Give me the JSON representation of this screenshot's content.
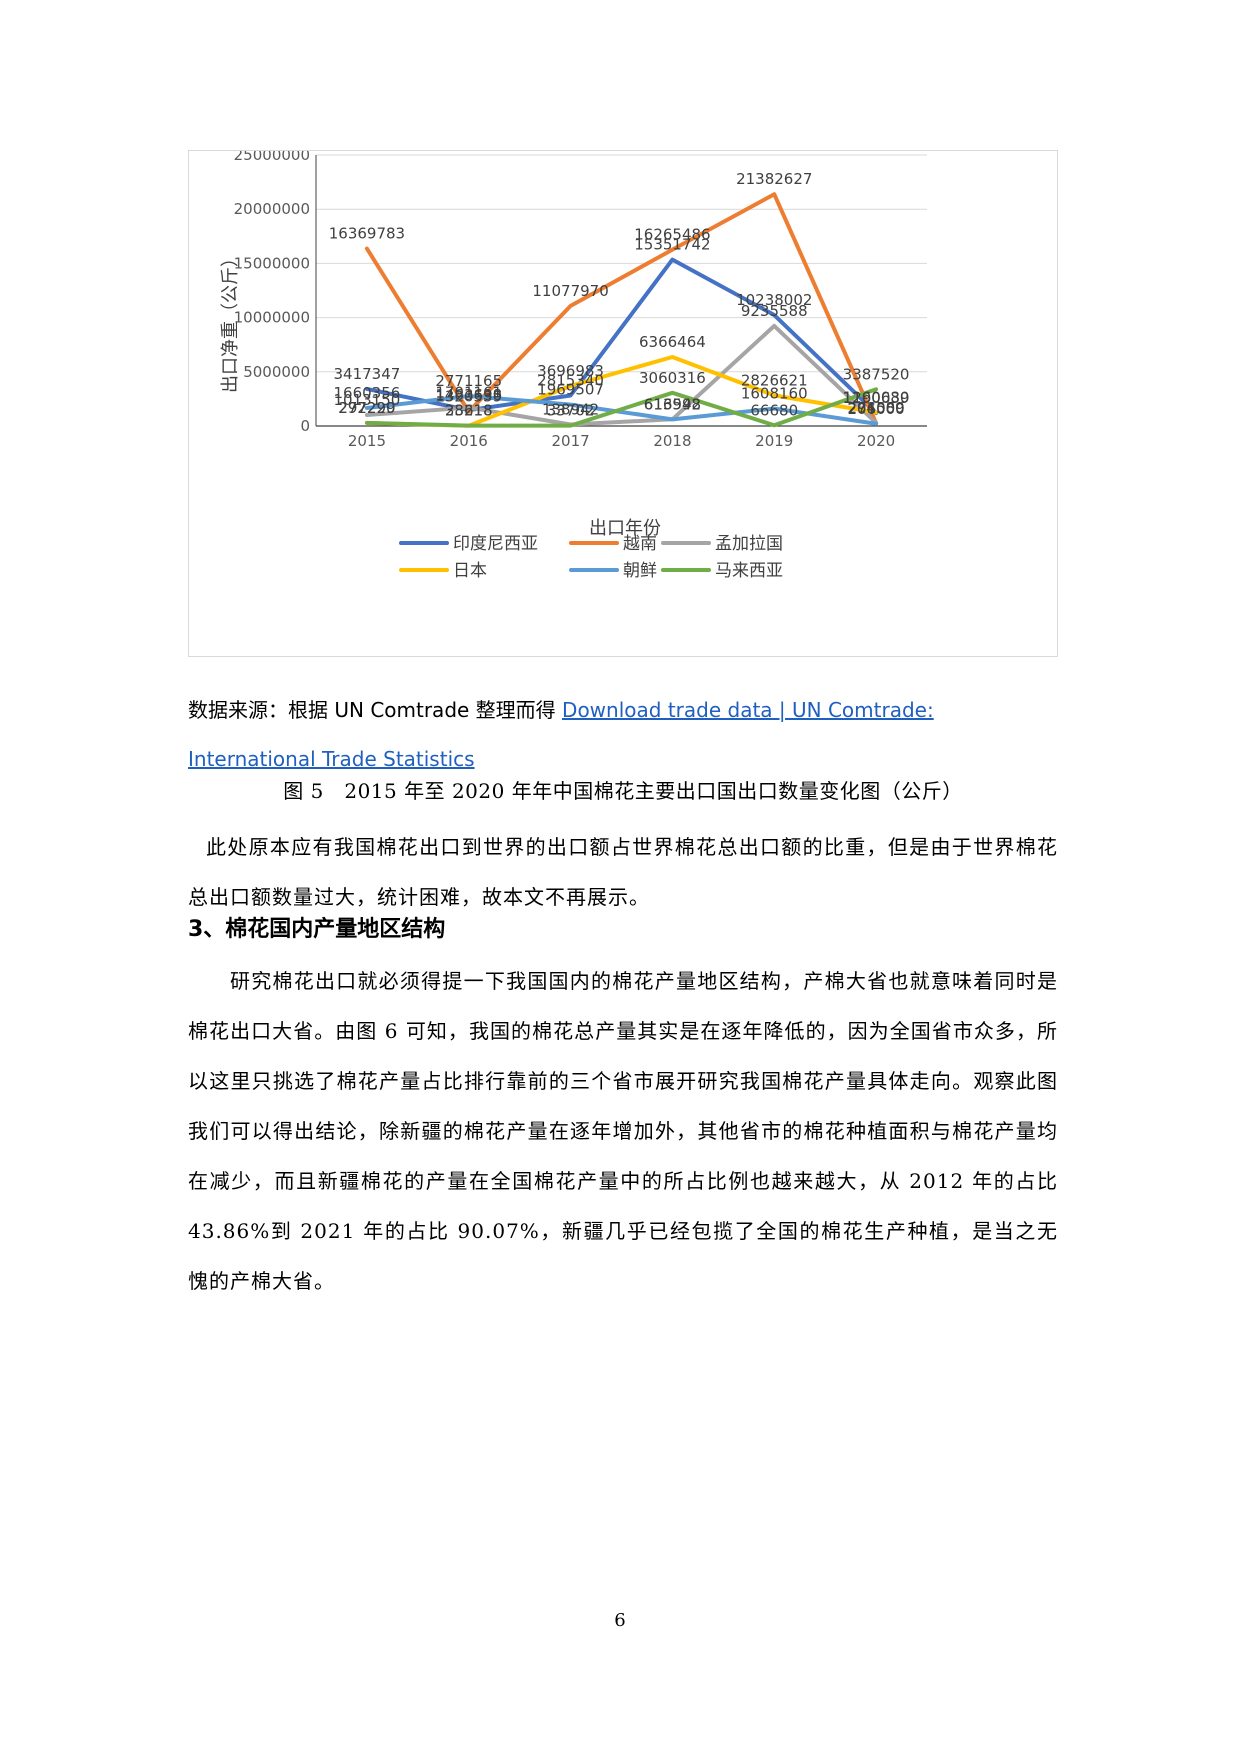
{
  "chart_data": {
    "type": "line",
    "ylabel": "出口净重（公斤）",
    "xlabel": "出口年份",
    "x": [
      "2015",
      "2016",
      "2017",
      "2018",
      "2019",
      "2020"
    ],
    "ylim": [
      0,
      25000000
    ],
    "yticks": [
      "25000000",
      "20000000",
      "15000000",
      "10000000",
      "5000000",
      "0"
    ],
    "grid": true,
    "legend_position": "bottom",
    "series": [
      {
        "name": "印度尼西亚",
        "color": "#4472c4",
        "values": [
          3417347,
          1463638,
          2815340,
          15351742,
          10238002,
          1190639
        ]
      },
      {
        "name": "越南",
        "color": "#ed7d31",
        "values": [
          16369783,
          1320539,
          11077970,
          16265486,
          21382627,
          274589
        ]
      },
      {
        "name": "孟加拉国",
        "color": "#a5a5a5",
        "values": [
          1013150,
          1701161,
          138942,
          616948,
          9235588,
          291000
        ]
      },
      {
        "name": "日本",
        "color": "#ffc000",
        "values": [
          277229,
          23218,
          3696983,
          6366464,
          2826621,
          1260080
        ]
      },
      {
        "name": "朝鲜",
        "color": "#5b9bd5",
        "values": [
          1660356,
          2771165,
          1969507,
          613592,
          1608160,
          206000
        ]
      },
      {
        "name": "马来西亚",
        "color": "#70ad47",
        "values": [
          292290,
          38618,
          33702,
          3060316,
          66680,
          3387520
        ]
      }
    ]
  },
  "source": {
    "prefix": "数据来源：根据 UN Comtrade 整理而得 ",
    "link_text": "Download trade data | UN Comtrade: International Trade Statistics"
  },
  "caption": "图 5　2015 年至 2020 年年中国棉花主要出口国出口数量变化图（公斤）",
  "paragraph1": "此处原本应有我国棉花出口到世界的出口额占世界棉花总出口额的比重，但是由于世界棉花总出口额数量过大，统计困难，故本文不再展示。",
  "heading": "3、棉花国内产量地区结构",
  "paragraph2": "研究棉花出口就必须得提一下我国国内的棉花产量地区结构，产棉大省也就意味着同时是棉花出口大省。由图 6 可知，我国的棉花总产量其实是在逐年降低的，因为全国省市众多，所以这里只挑选了棉花产量占比排行靠前的三个省市展开研究我国棉花产量具体走向。观察此图我们可以得出结论，除新疆的棉花产量在逐年增加外，其他省市的棉花种植面积与棉花产量均在减少，而且新疆棉花的产量在全国棉花产量中的所占比例也越来越大，从 2012 年的占比 43.86%到 2021 年的占比 90.07%，新疆几乎已经包揽了全国的棉花生产种植，是当之无愧的产棉大省。",
  "page_number": "6"
}
